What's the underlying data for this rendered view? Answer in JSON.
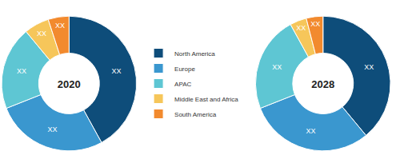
{
  "chart_data": [
    {
      "type": "pie",
      "title": "2020",
      "categories": [
        "North America",
        "Europe",
        "APAC",
        "Middle East and Africa",
        "South America"
      ],
      "values": [
        42,
        27,
        20,
        6,
        5
      ],
      "value_labels": [
        "XX",
        "XX",
        "XX",
        "XX",
        "XX"
      ],
      "colors": [
        "#0e4d7a",
        "#3a97cf",
        "#5ec6d3",
        "#f6c65a",
        "#f28a2e"
      ]
    },
    {
      "type": "pie",
      "title": "2028",
      "categories": [
        "North America",
        "Europe",
        "APAC",
        "Middle East and Africa",
        "South America"
      ],
      "values": [
        39,
        30,
        23,
        4,
        4
      ],
      "value_labels": [
        "XX",
        "XX",
        "XX",
        "XX",
        "XX"
      ],
      "colors": [
        "#0e4d7a",
        "#3a97cf",
        "#5ec6d3",
        "#f6c65a",
        "#f28a2e"
      ]
    }
  ]
}
